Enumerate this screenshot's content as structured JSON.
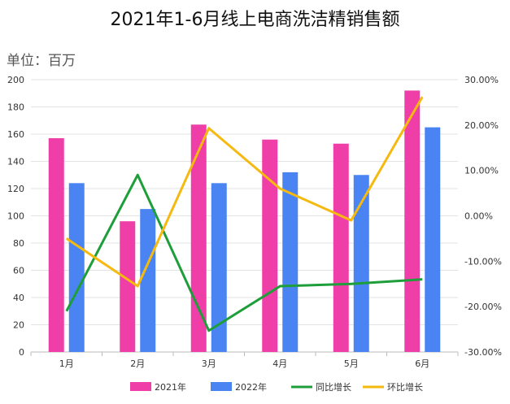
{
  "chart_data": {
    "type": "bar",
    "title": "2021年1-6月线上电商洗洁精销售额",
    "unit_label": "单位：百万",
    "categories": [
      "1月",
      "2月",
      "3月",
      "4月",
      "5月",
      "6月"
    ],
    "series": [
      {
        "name": "2021年",
        "type": "bar",
        "axis": "left",
        "color": "#f03ea8",
        "values": [
          157,
          96,
          167,
          156,
          153,
          192
        ]
      },
      {
        "name": "2022年",
        "type": "bar",
        "axis": "left",
        "color": "#4a84f2",
        "values": [
          124,
          105,
          124,
          132,
          130,
          165
        ]
      },
      {
        "name": "同比增长",
        "type": "line",
        "axis": "right",
        "color": "#1e9e3a",
        "values": [
          -0.21,
          0.09,
          -0.253,
          -0.155,
          -0.15,
          -0.14
        ]
      },
      {
        "name": "环比增长",
        "type": "line",
        "axis": "right",
        "color": "#f5b90f",
        "values": [
          -0.05,
          -0.155,
          0.193,
          0.06,
          -0.01,
          0.262
        ]
      }
    ],
    "y_left": {
      "min": 0,
      "max": 200,
      "ticks": [
        "0",
        "20",
        "40",
        "60",
        "80",
        "100",
        "120",
        "140",
        "160",
        "180",
        "200"
      ]
    },
    "y_right": {
      "min": -0.3,
      "max": 0.3,
      "ticks": [
        "-30.00%",
        "-20.00%",
        "-10.00%",
        "0.00%",
        "10.00%",
        "20.00%",
        "30.00%"
      ]
    },
    "grid": true,
    "legend_position": "bottom"
  }
}
